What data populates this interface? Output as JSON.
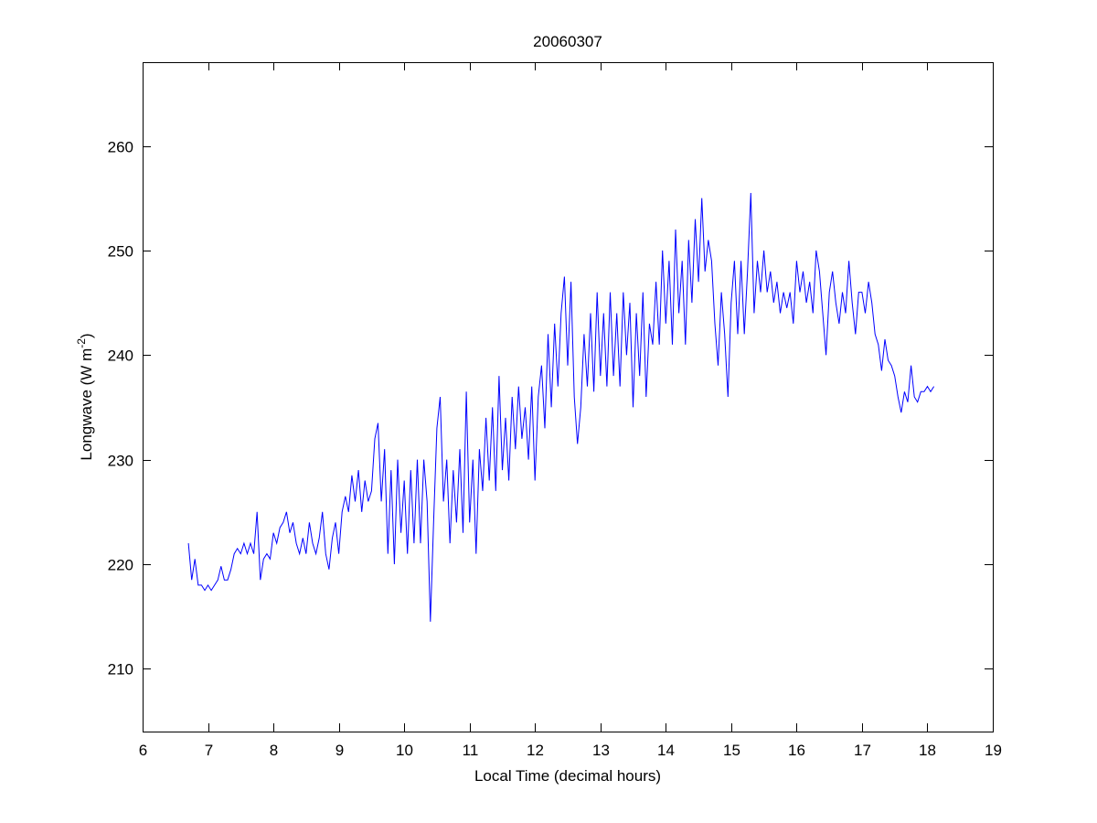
{
  "chart_data": {
    "type": "line",
    "title": "20060307",
    "xlabel": "Local Time (decimal hours)",
    "ylabel": {
      "main": "Longwave (W m",
      "superscript": "-2",
      "close": ")"
    },
    "xlim": [
      6,
      19
    ],
    "ylim": [
      204,
      268
    ],
    "xticks": [
      6,
      7,
      8,
      9,
      10,
      11,
      12,
      13,
      14,
      15,
      16,
      17,
      18,
      19
    ],
    "yticks": [
      210,
      220,
      230,
      240,
      250,
      260
    ],
    "grid": false,
    "line_color": "#0000ff",
    "points": [
      [
        6.7,
        222
      ],
      [
        6.75,
        218.5
      ],
      [
        6.8,
        220.5
      ],
      [
        6.85,
        218
      ],
      [
        6.9,
        218
      ],
      [
        6.95,
        217.5
      ],
      [
        7.0,
        218
      ],
      [
        7.05,
        217.5
      ],
      [
        7.1,
        218
      ],
      [
        7.15,
        218.5
      ],
      [
        7.2,
        219.8
      ],
      [
        7.25,
        218.5
      ],
      [
        7.3,
        218.5
      ],
      [
        7.35,
        219.5
      ],
      [
        7.4,
        221
      ],
      [
        7.45,
        221.5
      ],
      [
        7.5,
        221
      ],
      [
        7.55,
        222
      ],
      [
        7.6,
        221
      ],
      [
        7.65,
        222
      ],
      [
        7.7,
        221
      ],
      [
        7.75,
        225
      ],
      [
        7.8,
        218.5
      ],
      [
        7.85,
        220.5
      ],
      [
        7.9,
        221
      ],
      [
        7.95,
        220.5
      ],
      [
        8.0,
        223
      ],
      [
        8.05,
        222
      ],
      [
        8.1,
        223.5
      ],
      [
        8.15,
        224
      ],
      [
        8.2,
        225
      ],
      [
        8.25,
        223
      ],
      [
        8.3,
        224
      ],
      [
        8.35,
        222
      ],
      [
        8.4,
        221
      ],
      [
        8.45,
        222.5
      ],
      [
        8.5,
        221
      ],
      [
        8.55,
        224
      ],
      [
        8.6,
        222
      ],
      [
        8.65,
        221
      ],
      [
        8.7,
        222.5
      ],
      [
        8.75,
        225
      ],
      [
        8.8,
        221
      ],
      [
        8.85,
        219.5
      ],
      [
        8.9,
        222.5
      ],
      [
        8.95,
        224
      ],
      [
        9.0,
        221
      ],
      [
        9.05,
        225
      ],
      [
        9.1,
        226.5
      ],
      [
        9.15,
        225
      ],
      [
        9.2,
        228.5
      ],
      [
        9.25,
        226
      ],
      [
        9.3,
        229
      ],
      [
        9.35,
        225
      ],
      [
        9.4,
        228
      ],
      [
        9.45,
        226
      ],
      [
        9.5,
        227
      ],
      [
        9.55,
        232
      ],
      [
        9.6,
        233.5
      ],
      [
        9.65,
        226
      ],
      [
        9.7,
        231
      ],
      [
        9.75,
        221
      ],
      [
        9.8,
        229
      ],
      [
        9.85,
        220
      ],
      [
        9.9,
        230
      ],
      [
        9.95,
        223
      ],
      [
        10.0,
        228
      ],
      [
        10.05,
        221
      ],
      [
        10.1,
        229
      ],
      [
        10.15,
        222
      ],
      [
        10.2,
        230
      ],
      [
        10.25,
        222
      ],
      [
        10.3,
        230
      ],
      [
        10.35,
        226
      ],
      [
        10.4,
        214.5
      ],
      [
        10.45,
        224
      ],
      [
        10.5,
        233
      ],
      [
        10.55,
        236
      ],
      [
        10.6,
        226
      ],
      [
        10.65,
        230
      ],
      [
        10.7,
        222
      ],
      [
        10.75,
        229
      ],
      [
        10.8,
        224
      ],
      [
        10.85,
        231
      ],
      [
        10.9,
        223
      ],
      [
        10.95,
        236.5
      ],
      [
        11.0,
        224
      ],
      [
        11.05,
        230
      ],
      [
        11.1,
        221
      ],
      [
        11.15,
        231
      ],
      [
        11.2,
        227
      ],
      [
        11.25,
        234
      ],
      [
        11.3,
        228
      ],
      [
        11.35,
        235
      ],
      [
        11.4,
        227
      ],
      [
        11.45,
        238
      ],
      [
        11.5,
        229
      ],
      [
        11.55,
        234
      ],
      [
        11.6,
        228
      ],
      [
        11.65,
        236
      ],
      [
        11.7,
        231
      ],
      [
        11.75,
        237
      ],
      [
        11.8,
        232
      ],
      [
        11.85,
        235
      ],
      [
        11.9,
        230
      ],
      [
        11.95,
        237
      ],
      [
        12.0,
        228
      ],
      [
        12.05,
        236
      ],
      [
        12.1,
        239
      ],
      [
        12.15,
        233
      ],
      [
        12.2,
        242
      ],
      [
        12.25,
        235
      ],
      [
        12.3,
        243
      ],
      [
        12.35,
        237
      ],
      [
        12.4,
        244
      ],
      [
        12.45,
        247.5
      ],
      [
        12.5,
        239
      ],
      [
        12.55,
        247
      ],
      [
        12.6,
        236
      ],
      [
        12.65,
        231.5
      ],
      [
        12.7,
        235
      ],
      [
        12.75,
        242
      ],
      [
        12.8,
        237
      ],
      [
        12.85,
        244
      ],
      [
        12.9,
        236.5
      ],
      [
        12.95,
        246
      ],
      [
        13.0,
        238
      ],
      [
        13.05,
        244
      ],
      [
        13.1,
        237
      ],
      [
        13.15,
        246
      ],
      [
        13.2,
        238
      ],
      [
        13.25,
        244
      ],
      [
        13.3,
        237
      ],
      [
        13.35,
        246
      ],
      [
        13.4,
        240
      ],
      [
        13.45,
        245
      ],
      [
        13.5,
        235
      ],
      [
        13.55,
        244
      ],
      [
        13.6,
        238
      ],
      [
        13.65,
        246
      ],
      [
        13.7,
        236
      ],
      [
        13.75,
        243
      ],
      [
        13.8,
        241
      ],
      [
        13.85,
        247
      ],
      [
        13.9,
        241
      ],
      [
        13.95,
        250
      ],
      [
        14.0,
        243
      ],
      [
        14.05,
        249
      ],
      [
        14.1,
        241
      ],
      [
        14.15,
        252
      ],
      [
        14.2,
        244
      ],
      [
        14.25,
        249
      ],
      [
        14.3,
        241
      ],
      [
        14.35,
        251
      ],
      [
        14.4,
        245
      ],
      [
        14.45,
        253
      ],
      [
        14.5,
        247
      ],
      [
        14.55,
        255
      ],
      [
        14.6,
        248
      ],
      [
        14.65,
        251
      ],
      [
        14.7,
        249
      ],
      [
        14.75,
        243
      ],
      [
        14.8,
        239
      ],
      [
        14.85,
        246
      ],
      [
        14.9,
        242
      ],
      [
        14.95,
        236
      ],
      [
        15.0,
        245
      ],
      [
        15.05,
        249
      ],
      [
        15.1,
        242
      ],
      [
        15.15,
        249
      ],
      [
        15.2,
        242
      ],
      [
        15.25,
        248
      ],
      [
        15.3,
        255.5
      ],
      [
        15.35,
        244
      ],
      [
        15.4,
        249
      ],
      [
        15.45,
        246
      ],
      [
        15.5,
        250
      ],
      [
        15.55,
        246
      ],
      [
        15.6,
        248
      ],
      [
        15.65,
        245
      ],
      [
        15.7,
        247
      ],
      [
        15.75,
        244
      ],
      [
        15.8,
        246
      ],
      [
        15.85,
        244.5
      ],
      [
        15.9,
        246
      ],
      [
        15.95,
        243
      ],
      [
        16.0,
        249
      ],
      [
        16.05,
        246
      ],
      [
        16.1,
        248
      ],
      [
        16.15,
        245
      ],
      [
        16.2,
        247
      ],
      [
        16.25,
        244
      ],
      [
        16.3,
        250
      ],
      [
        16.35,
        248
      ],
      [
        16.4,
        244
      ],
      [
        16.45,
        240
      ],
      [
        16.5,
        246
      ],
      [
        16.55,
        248
      ],
      [
        16.6,
        245
      ],
      [
        16.65,
        243
      ],
      [
        16.7,
        246
      ],
      [
        16.75,
        244
      ],
      [
        16.8,
        249
      ],
      [
        16.85,
        245
      ],
      [
        16.9,
        242
      ],
      [
        16.95,
        246
      ],
      [
        17.0,
        246
      ],
      [
        17.05,
        244
      ],
      [
        17.1,
        247
      ],
      [
        17.15,
        245
      ],
      [
        17.2,
        242
      ],
      [
        17.25,
        241
      ],
      [
        17.3,
        238.5
      ],
      [
        17.35,
        241.5
      ],
      [
        17.4,
        239.5
      ],
      [
        17.45,
        239
      ],
      [
        17.5,
        238
      ],
      [
        17.55,
        236
      ],
      [
        17.6,
        234.5
      ],
      [
        17.65,
        236.5
      ],
      [
        17.7,
        235.5
      ],
      [
        17.75,
        239
      ],
      [
        17.8,
        236
      ],
      [
        17.85,
        235.5
      ],
      [
        17.9,
        236.5
      ],
      [
        17.95,
        236.5
      ],
      [
        18.0,
        237
      ],
      [
        18.05,
        236.5
      ],
      [
        18.1,
        237
      ]
    ]
  }
}
